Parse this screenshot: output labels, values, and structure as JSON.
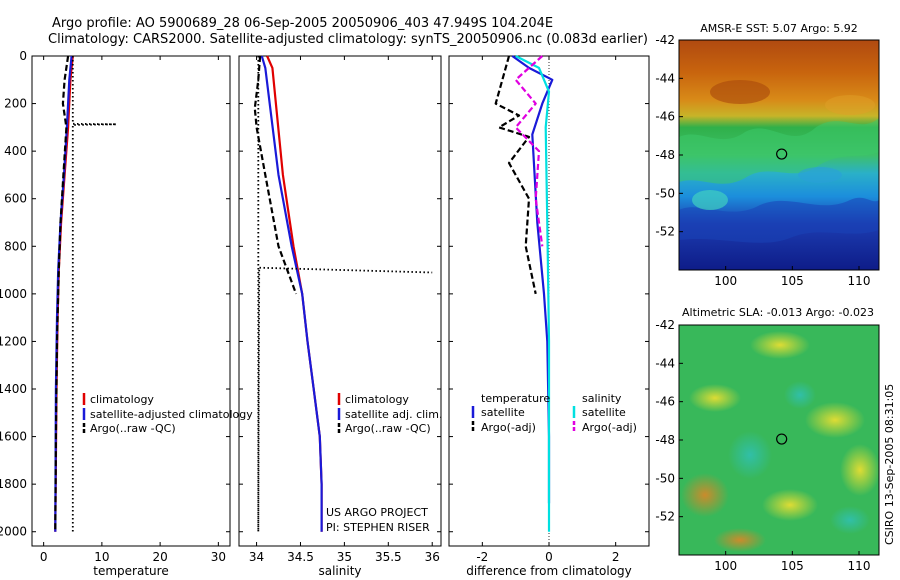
{
  "header": {
    "line1": "Argo profile: AO 5900689_28 06-Sep-2005 20050906_403 47.949S 104.204E",
    "line2": "Climatology: CARS2000. Satellite-adjusted climatology: synTS_20050906.nc (0.083d earlier)"
  },
  "side_label": "CSIRO 13-Sep-2005 08:31:05",
  "credits": [
    "US ARGO PROJECT",
    "PI: STEPHEN RISER"
  ],
  "colors": {
    "climatology": "#e00000",
    "satellite": "#1a1ad8",
    "argo": "#000000",
    "sal_satellite": "#00e0e0",
    "sal_argo": "#e000e0"
  },
  "chart_data": [
    {
      "type": "line",
      "xlabel": "temperature",
      "ylabel": "",
      "xlim": [
        -2,
        32
      ],
      "ylim": [
        0,
        2060
      ],
      "y_reversed": true,
      "xticks": [
        0,
        10,
        20,
        30
      ],
      "yticks": [
        0,
        200,
        400,
        600,
        800,
        1000,
        1200,
        1400,
        1600,
        1800,
        2000
      ],
      "legend": [
        "climatology",
        "satellite-adjusted climatology",
        "Argo(..raw -QC)"
      ],
      "series": [
        {
          "name": "climatology",
          "color": "#e00000",
          "style": "solid",
          "x": [
            5.0,
            4.6,
            4.2,
            3.6,
            3.0,
            2.6,
            2.4,
            2.2,
            2.1,
            2.0
          ],
          "y": [
            0,
            100,
            300,
            500,
            700,
            900,
            1100,
            1400,
            1700,
            2000
          ]
        },
        {
          "name": "satellite-adjusted climatology",
          "color": "#1a1ad8",
          "style": "solid",
          "x": [
            4.8,
            4.4,
            4.0,
            3.5,
            2.9,
            2.5,
            2.3,
            2.1,
            2.05,
            2.0
          ],
          "y": [
            0,
            100,
            300,
            500,
            700,
            900,
            1100,
            1400,
            1700,
            2000
          ]
        },
        {
          "name": "Argo(..raw -QC)",
          "color": "#000000",
          "style": "dashed",
          "x": [
            4.2,
            3.6,
            3.3,
            3.9,
            3.4,
            2.9,
            2.6,
            2.3,
            2.1,
            2.0
          ],
          "y": [
            0,
            100,
            200,
            300,
            500,
            700,
            900,
            1200,
            1600,
            2000
          ]
        },
        {
          "name": "",
          "color": "#000000",
          "style": "dotted",
          "x": [
            5.0,
            5.0,
            5.0,
            12.5,
            5.0,
            5.0,
            5.0
          ],
          "y": [
            0,
            280,
            285,
            287,
            290,
            1000,
            2000
          ]
        }
      ]
    },
    {
      "type": "line",
      "xlabel": "salinity",
      "ylabel": "",
      "xlim": [
        33.8,
        36.1
      ],
      "ylim": [
        0,
        2060
      ],
      "y_reversed": true,
      "xticks": [
        34,
        34.5,
        35,
        35.5,
        36
      ],
      "legend": [
        "climatology",
        "satellite adj. clim.",
        "Argo(..raw -QC)"
      ],
      "series": [
        {
          "name": "climatology",
          "color": "#e00000",
          "style": "solid",
          "x": [
            34.12,
            34.18,
            34.22,
            34.3,
            34.42,
            34.52,
            34.58,
            34.65,
            34.72,
            34.74,
            34.74
          ],
          "y": [
            0,
            50,
            200,
            500,
            800,
            1000,
            1200,
            1400,
            1600,
            1800,
            2000
          ]
        },
        {
          "name": "satellite adj. clim.",
          "color": "#1a1ad8",
          "style": "solid",
          "x": [
            34.06,
            34.1,
            34.15,
            34.25,
            34.4,
            34.52,
            34.58,
            34.65,
            34.72,
            34.74,
            34.74
          ],
          "y": [
            0,
            50,
            200,
            500,
            800,
            1000,
            1200,
            1400,
            1600,
            1800,
            2000
          ]
        },
        {
          "name": "Argo(..raw -QC)",
          "color": "#000000",
          "style": "dashed",
          "x": [
            34.04,
            34.02,
            33.98,
            34.0,
            34.1,
            34.25,
            34.45
          ],
          "y": [
            0,
            100,
            220,
            300,
            500,
            800,
            1000
          ]
        },
        {
          "name": "",
          "color": "#000000",
          "style": "dotted",
          "x": [
            34.02,
            34.02,
            34.03,
            36.0
          ],
          "y": [
            0,
            2000,
            890,
            910
          ]
        }
      ]
    },
    {
      "type": "line",
      "xlabel": "difference from climatology",
      "ylabel": "",
      "xlim": [
        -3,
        3
      ],
      "ylim": [
        0,
        2060
      ],
      "y_reversed": true,
      "xticks": [
        -2,
        0,
        2
      ],
      "legend_groups": [
        {
          "title": "temperature",
          "items": [
            "satellite",
            "Argo(-adj)"
          ]
        },
        {
          "title": "salinity",
          "items": [
            "satellite",
            "Argo(-adj)"
          ]
        }
      ],
      "series": [
        {
          "name": "temperature satellite",
          "color": "#1a1ad8",
          "style": "solid",
          "x": [
            -1.1,
            -0.6,
            0.1,
            -0.2,
            -0.5,
            -0.35,
            -0.15,
            -0.05,
            0.0,
            0.0
          ],
          "y": [
            0,
            50,
            100,
            200,
            330,
            700,
            1000,
            1200,
            1600,
            1880
          ]
        },
        {
          "name": "temperature Argo(-adj)",
          "color": "#000000",
          "style": "dashed",
          "x": [
            -1.2,
            -1.6,
            -0.9,
            -1.5,
            -0.6,
            -1.2,
            -0.6,
            -0.7,
            -0.4
          ],
          "y": [
            0,
            200,
            250,
            300,
            340,
            450,
            600,
            800,
            1000
          ]
        },
        {
          "name": "salinity satellite",
          "color": "#00e0e0",
          "style": "solid",
          "x": [
            -1.0,
            -0.3,
            0.0,
            -0.1,
            -0.05,
            0.0,
            0.0
          ],
          "y": [
            0,
            50,
            150,
            300,
            700,
            1200,
            2000
          ]
        },
        {
          "name": "salinity Argo(-adj)",
          "color": "#e000e0",
          "style": "dashed",
          "x": [
            -0.2,
            -1.0,
            -0.4,
            -1.0,
            -0.3,
            -0.4,
            -0.2
          ],
          "y": [
            0,
            100,
            200,
            300,
            400,
            600,
            800
          ]
        }
      ]
    },
    {
      "type": "heatmap",
      "title": "AMSR-E SST: 5.07 Argo: 5.92",
      "xlim": [
        96.5,
        111.5
      ],
      "ylim": [
        -54,
        -42
      ],
      "xticks": [
        100,
        105,
        110
      ],
      "yticks": [
        -42,
        -44,
        -46,
        -48,
        -50,
        -52
      ],
      "marker": [
        104.2,
        -47.95
      ]
    },
    {
      "type": "heatmap",
      "title": "Altimetric SLA: -0.013 Argo: -0.023",
      "xlim": [
        96.5,
        111.5
      ],
      "ylim": [
        -54,
        -42
      ],
      "xticks": [
        100,
        105,
        110
      ],
      "yticks": [
        -42,
        -44,
        -46,
        -48,
        -50,
        -52
      ],
      "marker": [
        104.2,
        -47.95
      ]
    }
  ]
}
